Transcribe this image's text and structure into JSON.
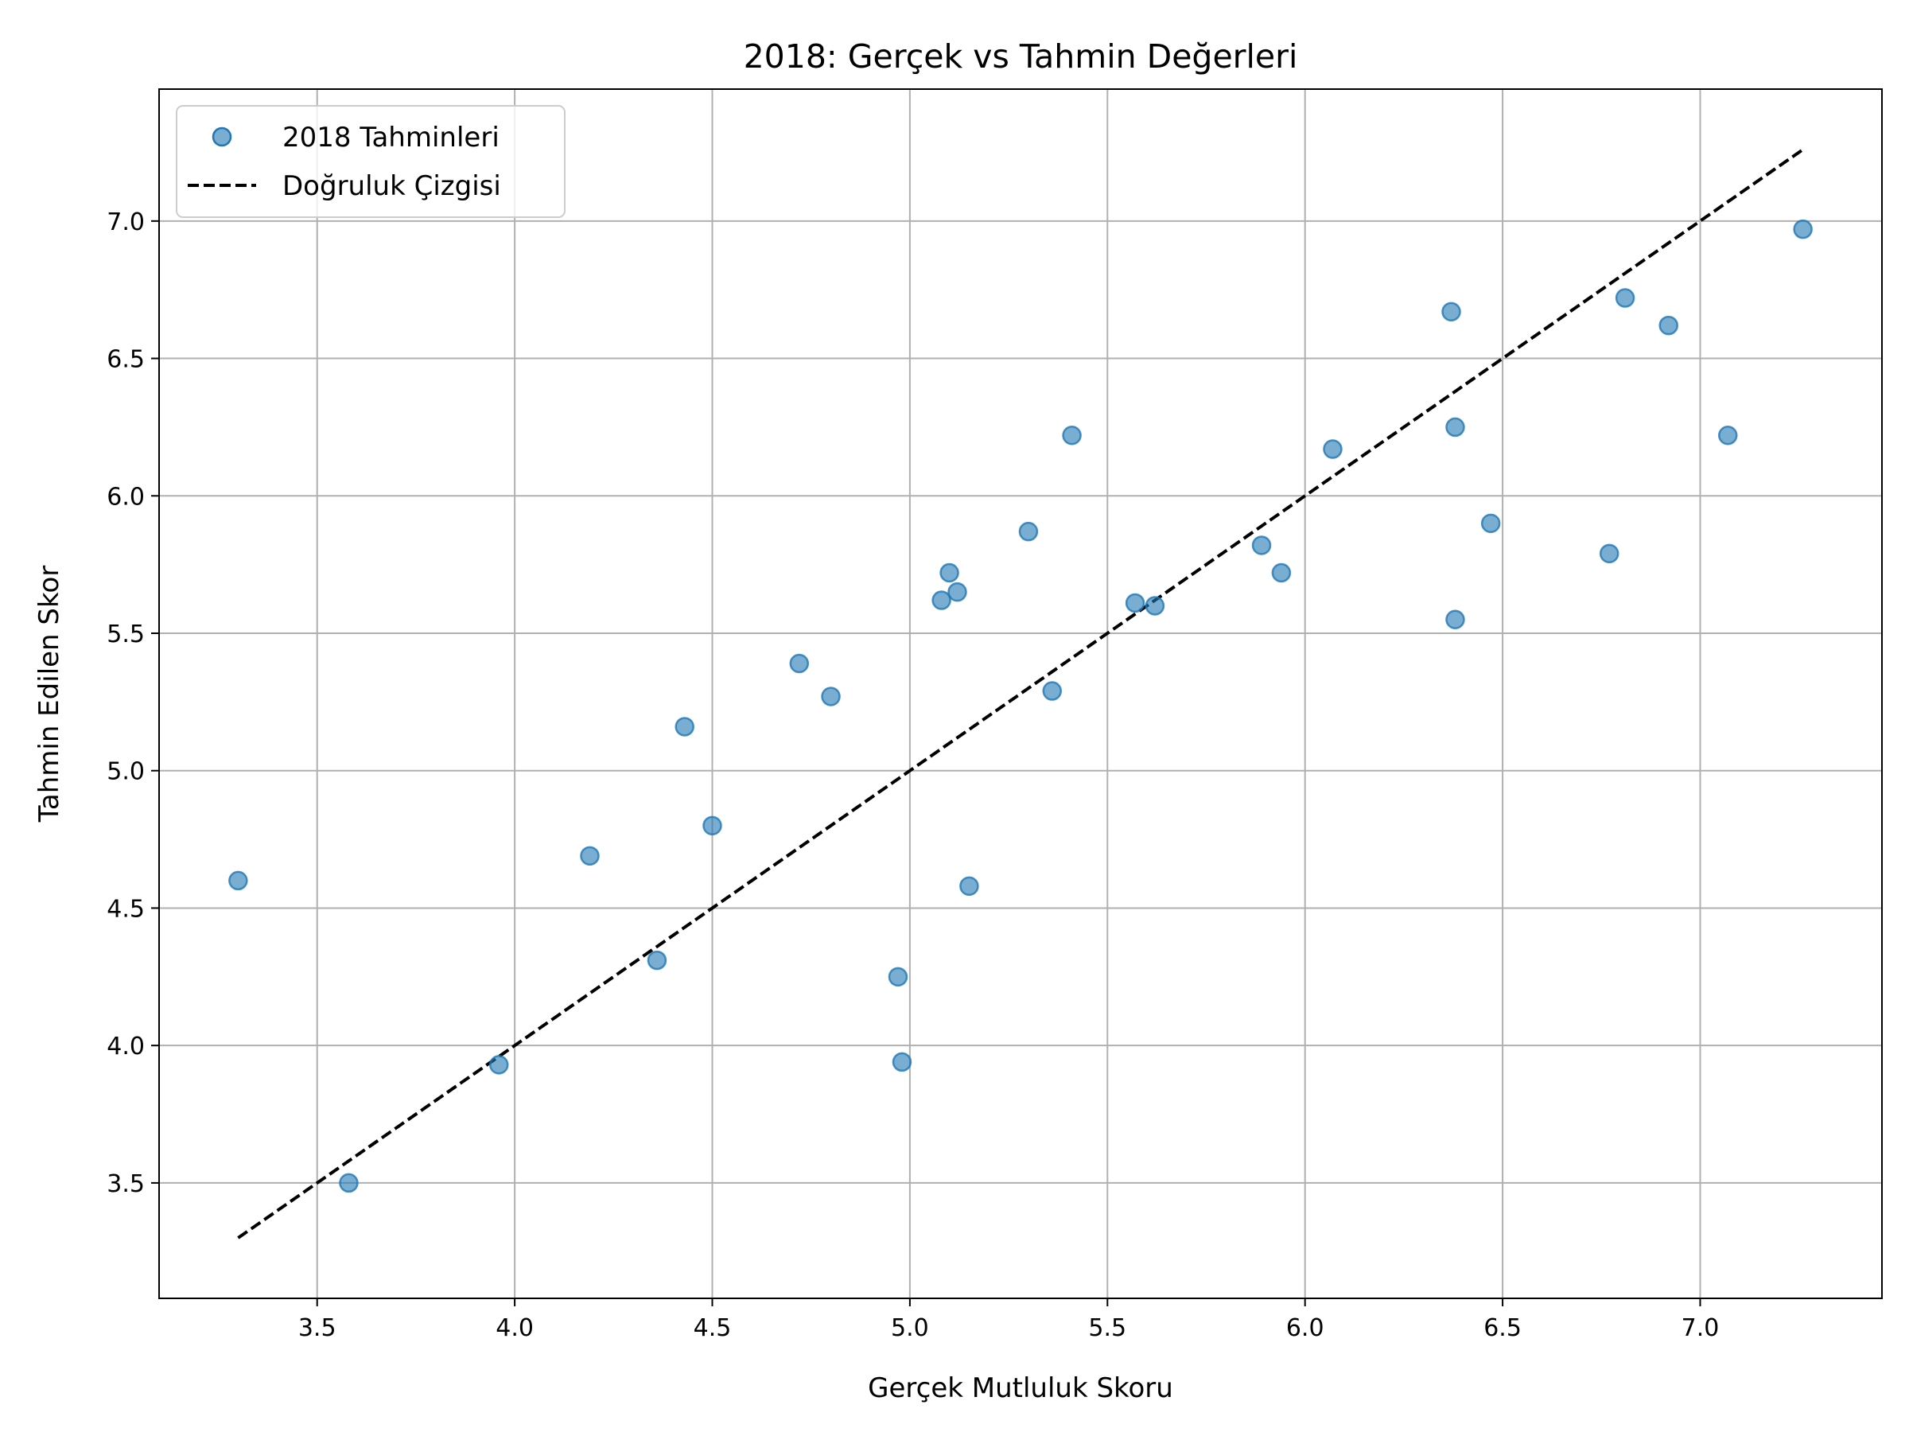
{
  "chart_data": {
    "type": "scatter",
    "title": "2018: Gerçek vs Tahmin Değerleri",
    "xlabel": "Gerçek Mutluluk Skoru",
    "ylabel": "Tahmin Edilen Skor",
    "xlim": [
      3.1,
      7.46
    ],
    "ylim": [
      3.08,
      7.48
    ],
    "xticks": [
      3.5,
      4.0,
      4.5,
      5.0,
      5.5,
      6.0,
      6.5,
      7.0
    ],
    "yticks": [
      3.5,
      4.0,
      4.5,
      5.0,
      5.5,
      6.0,
      6.5,
      7.0
    ],
    "xtick_labels": [
      "3.5",
      "4.0",
      "4.5",
      "5.0",
      "5.5",
      "6.0",
      "6.5",
      "7.0"
    ],
    "ytick_labels": [
      "3.5",
      "4.0",
      "4.5",
      "5.0",
      "5.5",
      "6.0",
      "6.5",
      "7.0"
    ],
    "grid": true,
    "legend_position": "top-left",
    "series": [
      {
        "name": "2018 Tahminleri",
        "kind": "scatter",
        "color": "#1f77b4",
        "alpha": 0.6,
        "points": [
          [
            3.3,
            4.6
          ],
          [
            3.58,
            3.5
          ],
          [
            3.96,
            3.93
          ],
          [
            4.19,
            4.69
          ],
          [
            4.36,
            4.31
          ],
          [
            4.43,
            5.16
          ],
          [
            4.5,
            4.8
          ],
          [
            4.72,
            5.39
          ],
          [
            4.8,
            5.27
          ],
          [
            4.97,
            4.25
          ],
          [
            4.98,
            3.94
          ],
          [
            5.08,
            5.62
          ],
          [
            5.1,
            5.72
          ],
          [
            5.12,
            5.65
          ],
          [
            5.15,
            4.58
          ],
          [
            5.3,
            5.87
          ],
          [
            5.36,
            5.29
          ],
          [
            5.41,
            6.22
          ],
          [
            5.57,
            5.61
          ],
          [
            5.62,
            5.6
          ],
          [
            5.89,
            5.82
          ],
          [
            5.94,
            5.72
          ],
          [
            6.07,
            6.17
          ],
          [
            6.37,
            6.67
          ],
          [
            6.38,
            6.25
          ],
          [
            6.38,
            5.55
          ],
          [
            6.47,
            5.9
          ],
          [
            6.77,
            5.79
          ],
          [
            6.81,
            6.72
          ],
          [
            6.92,
            6.62
          ],
          [
            7.07,
            6.22
          ],
          [
            7.26,
            6.97
          ]
        ]
      },
      {
        "name": "Doğruluk Çizgisi",
        "kind": "line",
        "style": "dashed",
        "color": "#000000",
        "x": [
          3.3,
          7.26
        ],
        "y": [
          3.3,
          7.26
        ]
      }
    ]
  }
}
